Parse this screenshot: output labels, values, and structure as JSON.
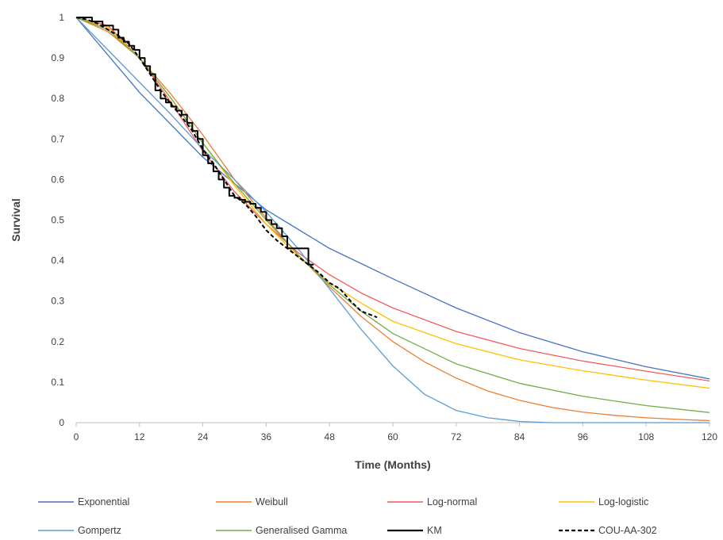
{
  "chart_data": {
    "type": "line",
    "title": "",
    "xlabel": "Time (Months)",
    "ylabel": "Survival",
    "xlim": [
      0,
      120
    ],
    "ylim": [
      0,
      1
    ],
    "xticks": [
      0,
      12,
      24,
      36,
      48,
      60,
      72,
      84,
      96,
      108,
      120
    ],
    "yticks": [
      0,
      0.1,
      0.2,
      0.3,
      0.4,
      0.5,
      0.6,
      0.7,
      0.8,
      0.9,
      1
    ],
    "ytick_labels": [
      "0",
      "0.1",
      "0.2",
      "0.3",
      "0.4",
      "0.5",
      "0.6",
      "0.7",
      "0.8",
      "0.9",
      "1"
    ],
    "grid": false,
    "legend_position": "bottom",
    "series": [
      {
        "name": "Exponential",
        "color": "#4472C4",
        "style": "solid",
        "x": [
          0,
          12,
          24,
          36,
          48,
          60,
          72,
          84,
          96,
          108,
          120
        ],
        "y": [
          1.0,
          0.815,
          0.655,
          0.525,
          0.43,
          0.355,
          0.283,
          0.222,
          0.175,
          0.138,
          0.108
        ]
      },
      {
        "name": "Weibull",
        "color": "#ED7D31",
        "style": "solid",
        "x": [
          0,
          6,
          12,
          18,
          24,
          30,
          36,
          42,
          48,
          54,
          60,
          66,
          72,
          78,
          84,
          90,
          96,
          102,
          108,
          114,
          120
        ],
        "y": [
          1.0,
          0.965,
          0.9,
          0.81,
          0.71,
          0.6,
          0.505,
          0.415,
          0.335,
          0.262,
          0.2,
          0.15,
          0.11,
          0.078,
          0.055,
          0.038,
          0.026,
          0.018,
          0.012,
          0.008,
          0.005
        ]
      },
      {
        "name": "Log-normal",
        "color": "#F45B5B",
        "style": "solid",
        "x": [
          0,
          6,
          12,
          18,
          24,
          30,
          36,
          42,
          48,
          54,
          60,
          72,
          84,
          96,
          108,
          120
        ],
        "y": [
          1.0,
          0.98,
          0.9,
          0.79,
          0.67,
          0.57,
          0.49,
          0.42,
          0.365,
          0.32,
          0.283,
          0.225,
          0.183,
          0.152,
          0.127,
          0.103
        ]
      },
      {
        "name": "Log-logistic",
        "color": "#FFC000",
        "style": "solid",
        "x": [
          0,
          6,
          12,
          18,
          24,
          30,
          36,
          42,
          48,
          54,
          60,
          72,
          84,
          96,
          108,
          120
        ],
        "y": [
          1.0,
          0.975,
          0.9,
          0.8,
          0.69,
          0.585,
          0.49,
          0.41,
          0.345,
          0.295,
          0.25,
          0.195,
          0.155,
          0.128,
          0.105,
          0.085
        ]
      },
      {
        "name": "Gompertz",
        "color": "#5B9BD5",
        "style": "solid",
        "x": [
          0,
          6,
          12,
          18,
          24,
          30,
          36,
          42,
          48,
          54,
          60,
          66,
          72,
          78,
          84,
          90,
          96,
          108,
          120
        ],
        "y": [
          1.0,
          0.92,
          0.84,
          0.76,
          0.675,
          0.6,
          0.52,
          0.43,
          0.33,
          0.23,
          0.14,
          0.07,
          0.03,
          0.012,
          0.003,
          0.0,
          0.0,
          0.0,
          0.0
        ]
      },
      {
        "name": "Generalised Gamma",
        "color": "#70AD47",
        "style": "solid",
        "x": [
          0,
          6,
          12,
          18,
          24,
          30,
          36,
          42,
          48,
          54,
          60,
          72,
          84,
          96,
          108,
          120
        ],
        "y": [
          1.0,
          0.97,
          0.9,
          0.8,
          0.69,
          0.59,
          0.5,
          0.415,
          0.34,
          0.275,
          0.22,
          0.145,
          0.097,
          0.065,
          0.042,
          0.025
        ]
      },
      {
        "name": "KM",
        "color": "#000000",
        "style": "step",
        "x": [
          0,
          2,
          3,
          5,
          7,
          8,
          9,
          10,
          11,
          12,
          13,
          14,
          15,
          16,
          17,
          18,
          19,
          20,
          21,
          22,
          23,
          24,
          25,
          26,
          27,
          28,
          29,
          30,
          31,
          32,
          33,
          34,
          35,
          36,
          37,
          38,
          39,
          40,
          42,
          43,
          44,
          45
        ],
        "y": [
          1.0,
          1.0,
          0.99,
          0.98,
          0.97,
          0.95,
          0.94,
          0.93,
          0.92,
          0.9,
          0.88,
          0.86,
          0.82,
          0.8,
          0.79,
          0.78,
          0.77,
          0.76,
          0.74,
          0.72,
          0.7,
          0.66,
          0.64,
          0.62,
          0.6,
          0.58,
          0.56,
          0.555,
          0.55,
          0.545,
          0.54,
          0.53,
          0.52,
          0.5,
          0.49,
          0.48,
          0.46,
          0.43,
          0.43,
          0.43,
          0.39,
          0.39
        ]
      },
      {
        "name": "COU-AA-302",
        "color": "#000000",
        "style": "dashed",
        "x": [
          0,
          2,
          4,
          6,
          8,
          10,
          12,
          14,
          16,
          18,
          20,
          22,
          24,
          26,
          28,
          30,
          32,
          34,
          36,
          38,
          40,
          42,
          44,
          46,
          48,
          50,
          52,
          54,
          56,
          57
        ],
        "y": [
          1.0,
          0.995,
          0.985,
          0.97,
          0.955,
          0.935,
          0.9,
          0.86,
          0.82,
          0.785,
          0.755,
          0.72,
          0.675,
          0.64,
          0.6,
          0.56,
          0.54,
          0.51,
          0.475,
          0.45,
          0.43,
          0.41,
          0.39,
          0.37,
          0.345,
          0.33,
          0.3,
          0.275,
          0.265,
          0.26
        ]
      }
    ]
  }
}
